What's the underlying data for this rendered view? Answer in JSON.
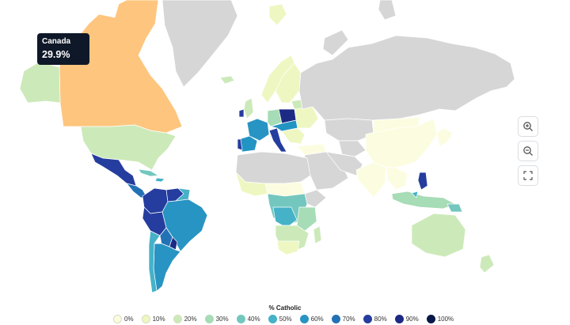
{
  "tooltip": {
    "country": "Canada",
    "value": "29.9%"
  },
  "controls": {
    "zoom_in_icon": "zoom-in-icon",
    "zoom_out_icon": "zoom-out-icon",
    "fullscreen_icon": "fullscreen-icon"
  },
  "legend": {
    "title": "% Catholic",
    "items": [
      {
        "label": "0%",
        "color": "#fcfde0"
      },
      {
        "label": "10%",
        "color": "#eef7c1"
      },
      {
        "label": "20%",
        "color": "#cceab9"
      },
      {
        "label": "30%",
        "color": "#a6dcb6"
      },
      {
        "label": "40%",
        "color": "#73c7be"
      },
      {
        "label": "50%",
        "color": "#45b2c8"
      },
      {
        "label": "60%",
        "color": "#2894c3"
      },
      {
        "label": "70%",
        "color": "#2272b5"
      },
      {
        "label": "80%",
        "color": "#253d9e"
      },
      {
        "label": "90%",
        "color": "#1c2a84"
      },
      {
        "label": "100%",
        "color": "#0a1848"
      }
    ]
  },
  "colors": {
    "no_data": "#d6d6d6",
    "highlight": "#fec57e"
  }
}
